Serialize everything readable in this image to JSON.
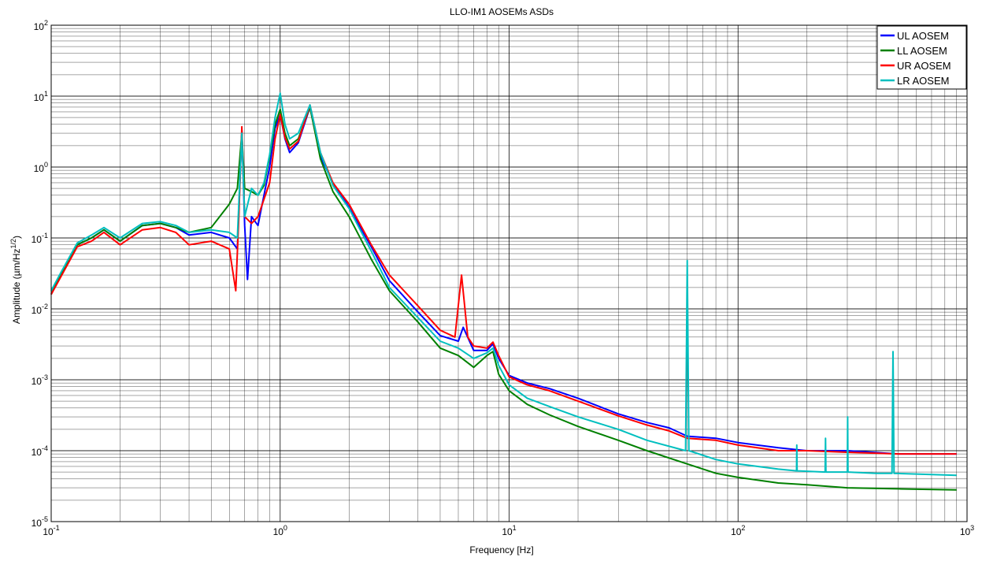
{
  "chart_data": {
    "type": "line",
    "title": "LLO-IM1 AOSEMs ASDs",
    "xlabel": "Frequency [Hz]",
    "ylabel": "Amplitude (µm/Hz",
    "ylabel_sup": "1/2",
    "ylabel_close": ")",
    "x_scale": "log",
    "y_scale": "log",
    "xlim": [
      0.1,
      1000
    ],
    "ylim": [
      1e-05,
      100
    ],
    "grid": true,
    "legend_position": "top-right",
    "x_ticks": [
      {
        "value": 0.1,
        "base": "10",
        "exp": "-1"
      },
      {
        "value": 1,
        "base": "10",
        "exp": "0"
      },
      {
        "value": 10,
        "base": "10",
        "exp": "1"
      },
      {
        "value": 100,
        "base": "10",
        "exp": "2"
      },
      {
        "value": 1000,
        "base": "10",
        "exp": "3"
      }
    ],
    "y_ticks": [
      {
        "value": 1e-05,
        "base": "10",
        "exp": "-5"
      },
      {
        "value": 0.0001,
        "base": "10",
        "exp": "-4"
      },
      {
        "value": 0.001,
        "base": "10",
        "exp": "-3"
      },
      {
        "value": 0.01,
        "base": "10",
        "exp": "-2"
      },
      {
        "value": 0.1,
        "base": "10",
        "exp": "-1"
      },
      {
        "value": 1,
        "base": "10",
        "exp": "0"
      },
      {
        "value": 10,
        "base": "10",
        "exp": "1"
      },
      {
        "value": 100,
        "base": "10",
        "exp": "2"
      }
    ],
    "series": [
      {
        "name": "UL AOSEM",
        "color": "#0000ff",
        "points": [
          [
            0.1,
            0.016
          ],
          [
            0.11,
            0.03
          ],
          [
            0.13,
            0.08
          ],
          [
            0.15,
            0.1
          ],
          [
            0.17,
            0.13
          ],
          [
            0.2,
            0.09
          ],
          [
            0.25,
            0.15
          ],
          [
            0.3,
            0.16
          ],
          [
            0.35,
            0.14
          ],
          [
            0.4,
            0.11
          ],
          [
            0.5,
            0.12
          ],
          [
            0.6,
            0.1
          ],
          [
            0.65,
            0.07
          ],
          [
            0.68,
            3.3
          ],
          [
            0.7,
            0.15
          ],
          [
            0.72,
            0.026
          ],
          [
            0.75,
            0.2
          ],
          [
            0.8,
            0.15
          ],
          [
            0.85,
            0.4
          ],
          [
            0.9,
            1.0
          ],
          [
            0.95,
            3.5
          ],
          [
            1.0,
            5.5
          ],
          [
            1.05,
            2.5
          ],
          [
            1.1,
            1.6
          ],
          [
            1.2,
            2.2
          ],
          [
            1.35,
            7.0
          ],
          [
            1.5,
            1.4
          ],
          [
            1.7,
            0.6
          ],
          [
            2.0,
            0.27
          ],
          [
            2.5,
            0.075
          ],
          [
            3.0,
            0.025
          ],
          [
            4.0,
            0.009
          ],
          [
            5.0,
            0.0042
          ],
          [
            6.0,
            0.0035
          ],
          [
            6.3,
            0.0055
          ],
          [
            7.0,
            0.0026
          ],
          [
            8.0,
            0.0026
          ],
          [
            8.5,
            0.0032
          ],
          [
            9.0,
            0.002
          ],
          [
            10.0,
            0.00115
          ],
          [
            12,
            0.0009
          ],
          [
            15,
            0.00075
          ],
          [
            20,
            0.00055
          ],
          [
            30,
            0.00033
          ],
          [
            40,
            0.00025
          ],
          [
            50,
            0.00021
          ],
          [
            60,
            0.00016
          ],
          [
            80,
            0.00015
          ],
          [
            100,
            0.00013
          ],
          [
            150,
            0.00011
          ],
          [
            200,
            0.0001
          ],
          [
            300,
            0.0001
          ],
          [
            500,
            9e-05
          ],
          [
            900,
            9e-05
          ]
        ]
      },
      {
        "name": "LL AOSEM",
        "color": "#008000",
        "points": [
          [
            0.1,
            0.016
          ],
          [
            0.11,
            0.03
          ],
          [
            0.13,
            0.08
          ],
          [
            0.15,
            0.1
          ],
          [
            0.17,
            0.13
          ],
          [
            0.2,
            0.09
          ],
          [
            0.25,
            0.15
          ],
          [
            0.3,
            0.16
          ],
          [
            0.35,
            0.14
          ],
          [
            0.4,
            0.12
          ],
          [
            0.5,
            0.14
          ],
          [
            0.6,
            0.3
          ],
          [
            0.65,
            0.5
          ],
          [
            0.68,
            3.0
          ],
          [
            0.7,
            0.5
          ],
          [
            0.75,
            0.45
          ],
          [
            0.8,
            0.4
          ],
          [
            0.85,
            0.55
          ],
          [
            0.9,
            1.4
          ],
          [
            0.95,
            4.0
          ],
          [
            1.0,
            6.5
          ],
          [
            1.05,
            3.0
          ],
          [
            1.1,
            2.0
          ],
          [
            1.2,
            2.5
          ],
          [
            1.35,
            7.0
          ],
          [
            1.5,
            1.3
          ],
          [
            1.7,
            0.45
          ],
          [
            2.0,
            0.2
          ],
          [
            2.5,
            0.05
          ],
          [
            3.0,
            0.018
          ],
          [
            4.0,
            0.0065
          ],
          [
            5.0,
            0.0028
          ],
          [
            6.0,
            0.0022
          ],
          [
            7.0,
            0.0015
          ],
          [
            8.0,
            0.0022
          ],
          [
            8.5,
            0.0025
          ],
          [
            9.0,
            0.0012
          ],
          [
            10.0,
            0.0007
          ],
          [
            12,
            0.00045
          ],
          [
            15,
            0.00032
          ],
          [
            20,
            0.00022
          ],
          [
            30,
            0.00014
          ],
          [
            40,
            0.0001
          ],
          [
            60,
            6.5e-05
          ],
          [
            80,
            4.8e-05
          ],
          [
            100,
            4.2e-05
          ],
          [
            150,
            3.5e-05
          ],
          [
            200,
            3.3e-05
          ],
          [
            300,
            3e-05
          ],
          [
            500,
            2.9e-05
          ],
          [
            900,
            2.8e-05
          ]
        ]
      },
      {
        "name": "UR AOSEM",
        "color": "#ff0000",
        "points": [
          [
            0.1,
            0.016
          ],
          [
            0.11,
            0.028
          ],
          [
            0.13,
            0.075
          ],
          [
            0.15,
            0.09
          ],
          [
            0.17,
            0.12
          ],
          [
            0.2,
            0.08
          ],
          [
            0.25,
            0.13
          ],
          [
            0.3,
            0.14
          ],
          [
            0.35,
            0.12
          ],
          [
            0.4,
            0.08
          ],
          [
            0.5,
            0.09
          ],
          [
            0.6,
            0.07
          ],
          [
            0.64,
            0.018
          ],
          [
            0.66,
            0.2
          ],
          [
            0.68,
            3.7
          ],
          [
            0.7,
            0.2
          ],
          [
            0.75,
            0.16
          ],
          [
            0.8,
            0.2
          ],
          [
            0.85,
            0.35
          ],
          [
            0.9,
            0.6
          ],
          [
            0.95,
            2.5
          ],
          [
            1.0,
            5.5
          ],
          [
            1.05,
            2.6
          ],
          [
            1.1,
            1.8
          ],
          [
            1.2,
            2.3
          ],
          [
            1.35,
            7.5
          ],
          [
            1.5,
            1.6
          ],
          [
            1.7,
            0.6
          ],
          [
            2.0,
            0.3
          ],
          [
            2.5,
            0.08
          ],
          [
            3.0,
            0.03
          ],
          [
            4.0,
            0.011
          ],
          [
            5.0,
            0.005
          ],
          [
            5.8,
            0.004
          ],
          [
            6.2,
            0.03
          ],
          [
            6.6,
            0.004
          ],
          [
            7.0,
            0.003
          ],
          [
            8.0,
            0.0028
          ],
          [
            8.5,
            0.0034
          ],
          [
            9.0,
            0.0022
          ],
          [
            10.0,
            0.0011
          ],
          [
            12,
            0.00085
          ],
          [
            15,
            0.0007
          ],
          [
            20,
            0.0005
          ],
          [
            30,
            0.00031
          ],
          [
            40,
            0.00023
          ],
          [
            50,
            0.00019
          ],
          [
            60,
            0.00015
          ],
          [
            80,
            0.00014
          ],
          [
            100,
            0.00012
          ],
          [
            150,
            0.0001
          ],
          [
            200,
            0.0001
          ],
          [
            300,
            9.5e-05
          ],
          [
            500,
            9e-05
          ],
          [
            900,
            9e-05
          ]
        ]
      },
      {
        "name": "LR AOSEM",
        "color": "#00bfbf",
        "points": [
          [
            0.1,
            0.018
          ],
          [
            0.11,
            0.032
          ],
          [
            0.13,
            0.085
          ],
          [
            0.15,
            0.11
          ],
          [
            0.17,
            0.14
          ],
          [
            0.2,
            0.1
          ],
          [
            0.25,
            0.16
          ],
          [
            0.3,
            0.17
          ],
          [
            0.35,
            0.15
          ],
          [
            0.4,
            0.12
          ],
          [
            0.5,
            0.13
          ],
          [
            0.6,
            0.12
          ],
          [
            0.65,
            0.1
          ],
          [
            0.68,
            3.0
          ],
          [
            0.7,
            0.2
          ],
          [
            0.75,
            0.5
          ],
          [
            0.8,
            0.4
          ],
          [
            0.85,
            0.6
          ],
          [
            0.9,
            1.5
          ],
          [
            0.95,
            5.0
          ],
          [
            1.0,
            11.0
          ],
          [
            1.05,
            4.0
          ],
          [
            1.1,
            2.5
          ],
          [
            1.2,
            3.0
          ],
          [
            1.35,
            7.5
          ],
          [
            1.5,
            1.6
          ],
          [
            1.7,
            0.55
          ],
          [
            2.0,
            0.26
          ],
          [
            2.5,
            0.065
          ],
          [
            3.0,
            0.02
          ],
          [
            4.0,
            0.0075
          ],
          [
            5.0,
            0.0035
          ],
          [
            6.0,
            0.0028
          ],
          [
            7.0,
            0.002
          ],
          [
            8.0,
            0.0024
          ],
          [
            8.5,
            0.0028
          ],
          [
            9.0,
            0.0016
          ],
          [
            10.0,
            0.00085
          ],
          [
            12,
            0.00055
          ],
          [
            15,
            0.00042
          ],
          [
            20,
            0.0003
          ],
          [
            30,
            0.0002
          ],
          [
            40,
            0.00014
          ],
          [
            59,
            0.0001
          ],
          [
            60,
            0.048
          ],
          [
            61,
            0.0001
          ],
          [
            80,
            7.5e-05
          ],
          [
            100,
            6.5e-05
          ],
          [
            150,
            5.5e-05
          ],
          [
            180,
            5.2e-05
          ],
          [
            180.5,
            0.00012
          ],
          [
            181,
            5.2e-05
          ],
          [
            240,
            5e-05
          ],
          [
            241,
            0.00015
          ],
          [
            242,
            5e-05
          ],
          [
            300,
            5e-05
          ],
          [
            301,
            0.0003
          ],
          [
            302,
            5e-05
          ],
          [
            400,
            4.8e-05
          ],
          [
            470,
            4.8e-05
          ],
          [
            475,
            0.0025
          ],
          [
            480,
            4.8e-05
          ],
          [
            900,
            4.5e-05
          ]
        ]
      }
    ]
  }
}
